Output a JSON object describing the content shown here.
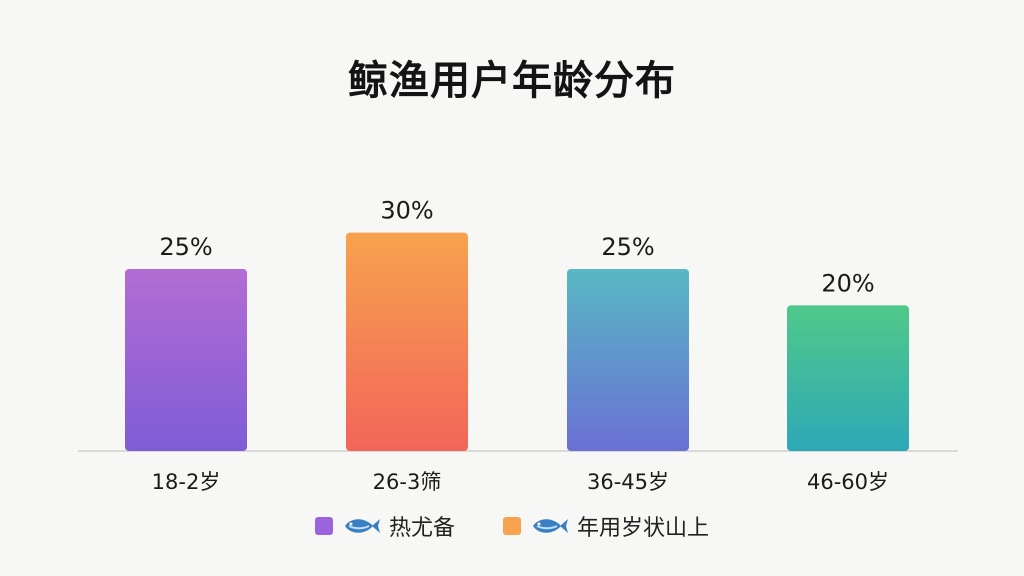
{
  "chart_data": {
    "type": "bar",
    "title": "鲸渔用户年龄分布",
    "categories": [
      "18-2岁",
      "26-3筛",
      "36-45岁",
      "46-60岁"
    ],
    "values": [
      25,
      30,
      25,
      20
    ],
    "value_labels": [
      "25%",
      "30%",
      "25%",
      "20%"
    ],
    "unit": "%",
    "ylim": [
      0,
      36
    ],
    "grid": false,
    "bar_gradients": [
      [
        "#b36cd4",
        "#7f5cd6"
      ],
      [
        "#f7a24e",
        "#f2655a"
      ],
      [
        "#58b8c4",
        "#6a70d4"
      ],
      [
        "#50c98a",
        "#2ea8b6"
      ]
    ],
    "legend": {
      "position": "bottom",
      "items": [
        {
          "label": "热尤备",
          "color": "#9b63dc",
          "icon": "fish-icon"
        },
        {
          "label": "年用岁状山上",
          "color": "#f7a24e",
          "icon": "fish-icon"
        }
      ]
    }
  }
}
